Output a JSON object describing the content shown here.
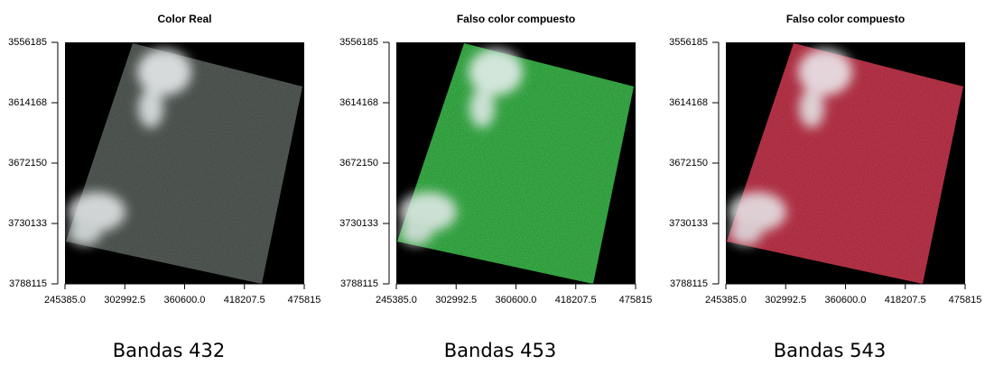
{
  "chart_data": [
    {
      "type": "image",
      "title": "Color Real",
      "caption": "Bandas 432",
      "color": "#5c645e",
      "xlim": [
        245385,
        475815
      ],
      "ylim": [
        3788115,
        3556185
      ],
      "xticks": [
        {
          "value": 245385,
          "label": "245385.0"
        },
        302992.5,
        {
          "value": 360600,
          "label": "360600.0"
        },
        418207.5,
        475815
      ],
      "yticks": [
        3556185,
        3614168,
        3672150,
        3730133,
        3788115
      ]
    },
    {
      "type": "image",
      "title": "Falso color compuesto",
      "caption": "Bandas 453",
      "color": "#3fc24f",
      "xlim": [
        245385,
        475815
      ],
      "ylim": [
        3788115,
        3556185
      ],
      "xticks": [
        {
          "value": 245385,
          "label": "245385.0"
        },
        302992.5,
        {
          "value": 360600,
          "label": "360600.0"
        },
        418207.5,
        475815
      ],
      "yticks": [
        3556185,
        3614168,
        3672150,
        3730133,
        3788115
      ]
    },
    {
      "type": "image",
      "title": "Falso color compuesto",
      "caption": "Bandas 543",
      "color": "#d23a52",
      "xlim": [
        245385,
        475815
      ],
      "ylim": [
        3788115,
        3556185
      ],
      "xticks": [
        {
          "value": 245385,
          "label": "245385.0"
        },
        302992.5,
        {
          "value": 360600,
          "label": "360600.0"
        },
        418207.5,
        475815
      ],
      "yticks": [
        3556185,
        3614168,
        3672150,
        3730133,
        3788115
      ]
    }
  ]
}
